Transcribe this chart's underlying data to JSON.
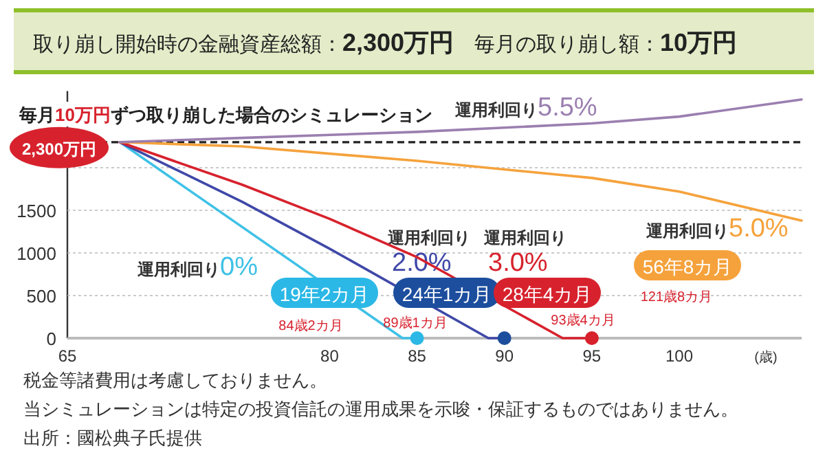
{
  "chart_data": {
    "type": "line",
    "title": "取り崩し開始時の金融資産総額：2,300万円　毎月の取り崩し額：10万円",
    "subtitle": "毎月10万円ずつ取り崩した場合のシミュレーション",
    "xlabel": "(歳)",
    "xlim": [
      65,
      107
    ],
    "xticks": [
      65,
      80,
      85,
      90,
      95,
      100
    ],
    "ylim": [
      0,
      2900
    ],
    "yticks": [
      0,
      500,
      1000,
      1500,
      {
        "value": 2000,
        "label": null
      }
    ],
    "grid": "y",
    "line_style": "solid",
    "series": [
      {
        "name": "運用利回り0%",
        "color": "#3fc1e6",
        "x": [
          68,
          84.17,
          85
        ],
        "values": [
          2300,
          0,
          0
        ]
      },
      {
        "name": "運用利回り2.0%",
        "color": "#3f48a8",
        "x": [
          68,
          75,
          80,
          89.08,
          90
        ],
        "values": [
          2300,
          1600,
          1050,
          0,
          0
        ]
      },
      {
        "name": "運用利回り3.0%",
        "color": "#d7222d",
        "x": [
          68,
          75,
          80,
          85,
          93.33,
          95
        ],
        "values": [
          2300,
          1800,
          1400,
          950,
          0,
          0
        ]
      },
      {
        "name": "運用利回り5.0%",
        "color": "#f5a23c",
        "x": [
          68,
          75,
          85,
          95,
          100,
          107
        ],
        "values": [
          2300,
          2250,
          2080,
          1880,
          1720,
          1380
        ]
      },
      {
        "name": "運用利回り5.5%",
        "color": "#9b7fb0",
        "x": [
          68,
          75,
          85,
          95,
          100,
          107
        ],
        "values": [
          2300,
          2350,
          2420,
          2520,
          2600,
          2800
        ]
      },
      {
        "type": "scatter",
        "x": [
          85,
          90,
          95
        ],
        "values": [
          0,
          0,
          0
        ],
        "colors": [
          "#2bb8e6",
          "#1d4e9e",
          "#d7222d"
        ],
        "marker": "circle"
      }
    ],
    "ref_lines": [
      {
        "axis": "y",
        "value": 2300,
        "label": "2,300万円",
        "color": "#222222",
        "line_style": "dashed"
      }
    ],
    "annotations": [
      "19年2カ月",
      "84歳2カ月",
      "24年1カ月",
      "89歳1カ月",
      "28年4カ月",
      "93歳4カ月",
      "56年8カ月",
      "121歳8カ月",
      "税金等諸費用は考慮しておりません。",
      "当シミュレーションは特定の投資信託の運用成果を示唆・保証するものではありません。",
      "出所：國松典子氏提供"
    ]
  }
}
